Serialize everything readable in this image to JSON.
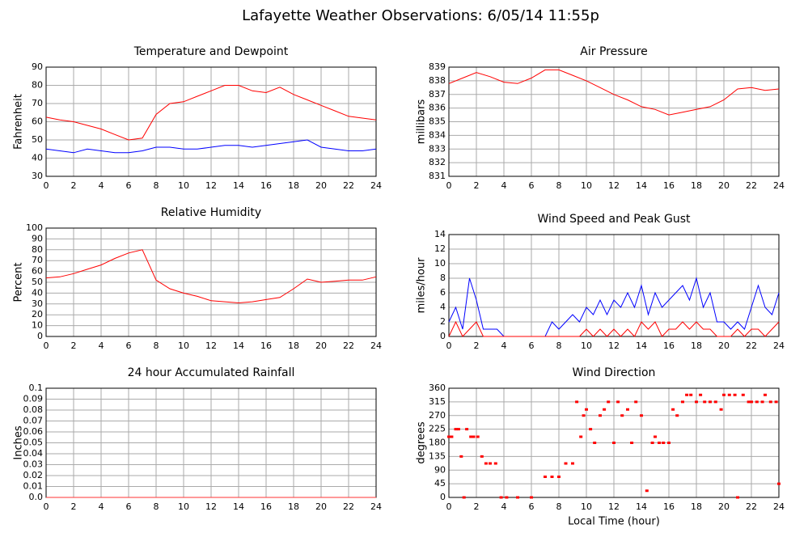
{
  "title": "Lafayette Weather Observations: 6/05/14 11:55p",
  "chart_data": [
    {
      "type": "line",
      "title": "Temperature and Dewpoint",
      "ylabel": "Fahrenheit",
      "x": [
        0,
        1,
        2,
        3,
        4,
        5,
        6,
        7,
        8,
        9,
        10,
        11,
        12,
        13,
        14,
        15,
        16,
        17,
        18,
        19,
        20,
        21,
        22,
        23,
        24
      ],
      "series": [
        {
          "color": "#ff0000",
          "values": [
            62.5,
            61,
            60,
            58,
            56,
            53,
            50,
            51,
            64,
            70,
            71,
            74,
            77,
            80,
            80,
            77,
            76,
            79,
            75,
            72,
            69,
            66,
            63,
            62,
            61
          ]
        },
        {
          "color": "#0000ff",
          "values": [
            45,
            44,
            43,
            45,
            44,
            43,
            43,
            44,
            46,
            46,
            45,
            45,
            46,
            47,
            47,
            46,
            47,
            48,
            49,
            50,
            46,
            45,
            44,
            44,
            45
          ]
        }
      ],
      "xlim": [
        0,
        24
      ],
      "xticks": [
        0,
        2,
        4,
        6,
        8,
        10,
        12,
        14,
        16,
        18,
        20,
        22,
        24
      ],
      "ylim": [
        30,
        90
      ],
      "yticks": [
        30,
        40,
        50,
        60,
        70,
        80,
        90
      ],
      "grid": true
    },
    {
      "type": "line",
      "title": "Air Pressure",
      "ylabel": "millibars",
      "x": [
        0,
        1,
        2,
        3,
        4,
        5,
        6,
        7,
        8,
        9,
        10,
        11,
        12,
        13,
        14,
        15,
        16,
        17,
        18,
        19,
        20,
        21,
        22,
        23,
        24
      ],
      "series": [
        {
          "color": "#ff0000",
          "values": [
            837.8,
            838.2,
            838.6,
            838.3,
            837.9,
            837.8,
            838.2,
            838.8,
            838.8,
            838.4,
            838,
            837.5,
            837,
            836.6,
            836.1,
            835.9,
            835.5,
            835.7,
            835.9,
            836.1,
            836.6,
            837.4,
            837.5,
            837.3,
            837.4
          ]
        }
      ],
      "xlim": [
        0,
        24
      ],
      "xticks": [
        0,
        2,
        4,
        6,
        8,
        10,
        12,
        14,
        16,
        18,
        20,
        22,
        24
      ],
      "ylim": [
        831,
        839
      ],
      "yticks": [
        831,
        832,
        833,
        834,
        835,
        836,
        837,
        838,
        839
      ],
      "grid": true
    },
    {
      "type": "line",
      "title": "Relative Humidity",
      "ylabel": "Percent",
      "x": [
        0,
        1,
        2,
        3,
        4,
        5,
        6,
        7,
        8,
        9,
        10,
        11,
        12,
        13,
        14,
        15,
        16,
        17,
        18,
        19,
        20,
        21,
        22,
        23,
        24
      ],
      "series": [
        {
          "color": "#ff0000",
          "values": [
            54,
            55,
            58,
            62,
            66,
            72,
            77,
            80,
            52,
            44,
            40,
            37,
            33,
            32,
            31,
            32,
            34,
            36,
            44,
            53,
            50,
            51,
            52,
            52,
            55
          ]
        }
      ],
      "xlim": [
        0,
        24
      ],
      "xticks": [
        0,
        2,
        4,
        6,
        8,
        10,
        12,
        14,
        16,
        18,
        20,
        22,
        24
      ],
      "ylim": [
        0,
        100
      ],
      "yticks": [
        0,
        10,
        20,
        30,
        40,
        50,
        60,
        70,
        80,
        90,
        100
      ],
      "grid": true
    },
    {
      "type": "line",
      "title": "Wind Speed and Peak Gust",
      "ylabel": "miles/hour",
      "x": [
        0,
        0.5,
        1,
        1.5,
        2,
        2.5,
        3,
        3.5,
        4,
        5,
        6,
        7,
        7.5,
        8,
        8.5,
        9,
        9.5,
        10,
        10.5,
        11,
        11.5,
        12,
        12.5,
        13,
        13.5,
        14,
        14.5,
        15,
        15.5,
        16,
        16.5,
        17,
        17.5,
        18,
        18.5,
        19,
        19.5,
        20,
        20.5,
        21,
        21.5,
        22,
        22.5,
        23,
        23.5,
        24
      ],
      "series": [
        {
          "color": "#0000ff",
          "values": [
            2,
            4,
            1,
            8,
            5,
            1,
            1,
            1,
            0,
            0,
            0,
            0,
            2,
            1,
            2,
            3,
            2,
            4,
            3,
            5,
            3,
            5,
            4,
            6,
            4,
            7,
            3,
            6,
            4,
            5,
            6,
            7,
            5,
            8,
            4,
            6,
            2,
            2,
            1,
            2,
            1,
            4,
            7,
            4,
            3,
            6
          ]
        },
        {
          "color": "#ff0000",
          "values": [
            0,
            2,
            0,
            1,
            2,
            0,
            0,
            0,
            0,
            0,
            0,
            0,
            0,
            0,
            0,
            0,
            0,
            1,
            0,
            1,
            0,
            1,
            0,
            1,
            0,
            2,
            1,
            2,
            0,
            1,
            1,
            2,
            1,
            2,
            1,
            1,
            0,
            0,
            0,
            1,
            0,
            1,
            1,
            0,
            1,
            2
          ]
        }
      ],
      "xlim": [
        0,
        24
      ],
      "xticks": [
        0,
        2,
        4,
        6,
        8,
        10,
        12,
        14,
        16,
        18,
        20,
        22,
        24
      ],
      "ylim": [
        0,
        14
      ],
      "yticks": [
        0,
        2,
        4,
        6,
        8,
        10,
        12,
        14
      ],
      "grid": true
    },
    {
      "type": "line",
      "title": "24 hour Accumulated Rainfall",
      "ylabel": "Inches",
      "x": [
        0,
        24
      ],
      "series": [
        {
          "color": "#ff3333",
          "values": [
            0,
            0
          ]
        }
      ],
      "xlim": [
        0,
        24
      ],
      "xticks": [
        0,
        2,
        4,
        6,
        8,
        10,
        12,
        14,
        16,
        18,
        20,
        22,
        24
      ],
      "ylim": [
        0,
        0.1
      ],
      "yticks": [
        {
          "value": 0,
          "label": "0.0"
        },
        0.01,
        0.02,
        0.03,
        0.04,
        0.05,
        0.06,
        0.07,
        0.08,
        0.09,
        0.1
      ],
      "grid": true
    },
    {
      "type": "scatter",
      "title": "Wind Direction",
      "ylabel": "degrees",
      "xlabel": "Local Time (hour)",
      "x": [
        0,
        0.2,
        0.5,
        0.7,
        0.9,
        1.1,
        1.3,
        1.6,
        1.8,
        2.1,
        2.4,
        2.7,
        3,
        3.4,
        3.8,
        4.2,
        5,
        6,
        7,
        7.5,
        8,
        8.5,
        9,
        9.3,
        9.6,
        9.8,
        10,
        10.3,
        10.6,
        11,
        11.3,
        11.6,
        12,
        12.3,
        12.6,
        13,
        13.3,
        13.6,
        14,
        14.4,
        14.8,
        15,
        15.3,
        15.6,
        16,
        16.3,
        16.6,
        17,
        17.3,
        17.6,
        18,
        18.3,
        18.6,
        19,
        19.4,
        19.8,
        20,
        20.4,
        20.8,
        21,
        21.4,
        21.8,
        22,
        22.4,
        22.8,
        23,
        23.4,
        23.8,
        24
      ],
      "series": [
        {
          "color": "#ff0000",
          "values": [
            200,
            200,
            225,
            225,
            135,
            0,
            225,
            200,
            200,
            200,
            135,
            112,
            112,
            112,
            0,
            0,
            0,
            0,
            68,
            68,
            68,
            112,
            112,
            315,
            200,
            270,
            290,
            225,
            180,
            270,
            290,
            315,
            180,
            315,
            270,
            290,
            180,
            315,
            270,
            22,
            180,
            200,
            180,
            180,
            180,
            290,
            270,
            315,
            338,
            338,
            315,
            338,
            315,
            315,
            315,
            290,
            338,
            338,
            338,
            0,
            338,
            315,
            315,
            315,
            315,
            338,
            315,
            315,
            45
          ]
        }
      ],
      "xlim": [
        0,
        24
      ],
      "xticks": [
        0,
        2,
        4,
        6,
        8,
        10,
        12,
        14,
        16,
        18,
        20,
        22,
        24
      ],
      "ylim": [
        0,
        360
      ],
      "yticks": [
        0,
        45,
        90,
        135,
        180,
        225,
        270,
        315,
        360
      ],
      "grid": true
    }
  ]
}
